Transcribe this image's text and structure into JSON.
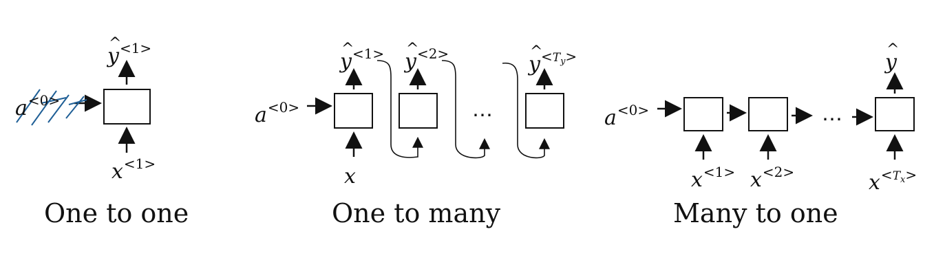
{
  "sections": [
    {
      "caption": "One to one",
      "a0": {
        "base": "a",
        "sup": "<0>"
      },
      "y": {
        "base": "y",
        "sup": "<1>"
      },
      "x": {
        "base": "x",
        "sup": "<1>"
      }
    },
    {
      "caption": "One to many",
      "a0": {
        "base": "a",
        "sup": "<0>"
      },
      "x": {
        "base": "x"
      },
      "outputs": [
        {
          "base": "y",
          "sup": "<1>"
        },
        {
          "base": "y",
          "sup": "<2>"
        },
        {
          "base": "y",
          "sup_pre": "<",
          "sup_var": "T",
          "sup_sub": "y",
          "sup_post": ">"
        }
      ],
      "ellipsis": "⋯"
    },
    {
      "caption": "Many to one",
      "a0": {
        "base": "a",
        "sup": "<0>"
      },
      "y": {
        "base": "y"
      },
      "inputs": [
        {
          "base": "x",
          "sup": "<1>"
        },
        {
          "base": "x",
          "sup": "<2>"
        },
        {
          "base": "x",
          "sup_pre": "<",
          "sup_var": "T",
          "sup_sub": "x",
          "sup_post": ">"
        }
      ],
      "ellipsis": "⋯"
    }
  ],
  "colors": {
    "ink": "#111111",
    "annotation": "#1f5f96"
  }
}
